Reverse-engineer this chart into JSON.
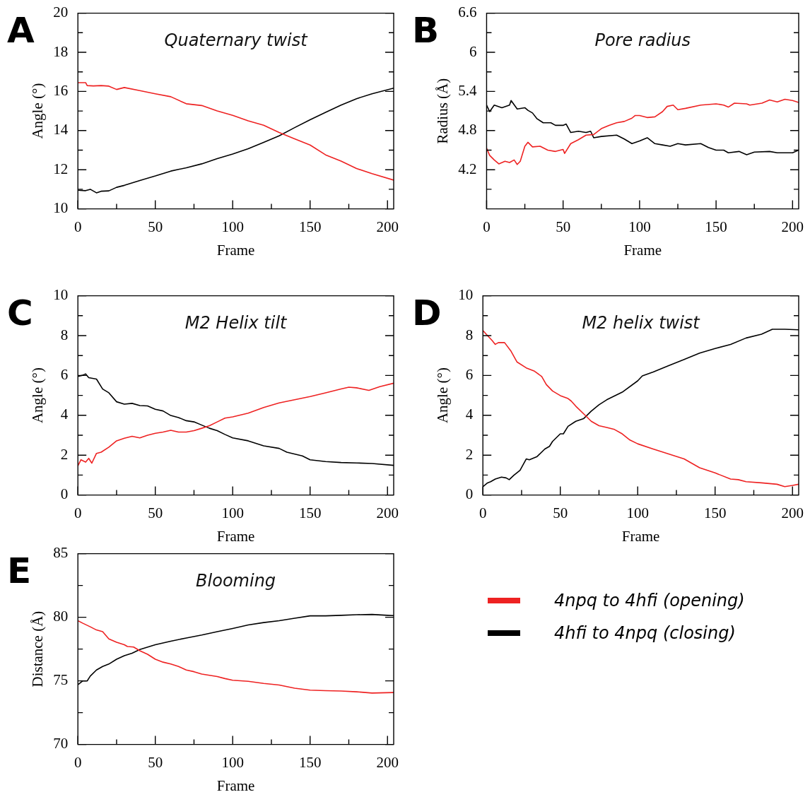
{
  "chart_data": [
    {
      "type": "line",
      "title": "Quaternary twist",
      "xlabel": "Frame",
      "ylabel": "Angle (°)",
      "annotations": [
        "A"
      ],
      "marker": "none",
      "xlim": [
        0,
        204
      ],
      "xticks": [
        0,
        {
          "value": 25,
          "label": null
        },
        50,
        {
          "value": 75,
          "label": null
        },
        100,
        {
          "value": 125,
          "label": null
        },
        150,
        {
          "value": 175,
          "label": null
        },
        200
      ],
      "ylim": [
        10,
        20
      ],
      "yticks": [
        10,
        {
          "value": 11,
          "label": null
        },
        12,
        {
          "value": 13,
          "label": null
        },
        14,
        {
          "value": 15,
          "label": null
        },
        16,
        {
          "value": 17,
          "label": null
        },
        18,
        {
          "value": 19,
          "label": null
        },
        20
      ],
      "series": [
        {
          "color": "#ee2222",
          "x": [
            0,
            5,
            6,
            10,
            15,
            20,
            25,
            30,
            40,
            50,
            60,
            70,
            80,
            90,
            100,
            110,
            120,
            130,
            140,
            150,
            160,
            170,
            180,
            190,
            204
          ],
          "values": [
            16.45,
            16.45,
            16.3,
            16.28,
            16.3,
            16.27,
            16.1,
            16.2,
            16.04,
            15.88,
            15.73,
            15.37,
            15.28,
            15.0,
            14.78,
            14.5,
            14.27,
            13.9,
            13.58,
            13.26,
            12.76,
            12.44,
            12.06,
            11.8,
            11.47
          ]
        },
        {
          "color": "#000000",
          "x": [
            0,
            5,
            8,
            12,
            15,
            20,
            25,
            30,
            40,
            50,
            60,
            70,
            80,
            90,
            100,
            110,
            120,
            130,
            140,
            150,
            160,
            170,
            180,
            190,
            204
          ],
          "values": [
            10.95,
            10.93,
            11.0,
            10.82,
            10.9,
            10.92,
            11.1,
            11.2,
            11.45,
            11.68,
            11.93,
            12.1,
            12.3,
            12.57,
            12.8,
            13.07,
            13.4,
            13.73,
            14.15,
            14.55,
            14.93,
            15.3,
            15.63,
            15.88,
            16.17
          ]
        }
      ]
    },
    {
      "type": "line",
      "title": "Pore radius",
      "xlabel": "Frame",
      "ylabel": "Radius (Å)",
      "annotations": [
        "B"
      ],
      "marker": "none",
      "xlim": [
        0,
        204
      ],
      "xticks": [
        0,
        {
          "value": 25,
          "label": null
        },
        50,
        {
          "value": 75,
          "label": null
        },
        100,
        {
          "value": 125,
          "label": null
        },
        150,
        {
          "value": 175,
          "label": null
        },
        200
      ],
      "ylim": [
        3.6,
        6.6
      ],
      "yticks": [
        {
          "value": 3.9,
          "label": null
        },
        4.2,
        {
          "value": 4.5,
          "label": null
        },
        4.8,
        {
          "value": 5.1,
          "label": null
        },
        5.4,
        {
          "value": 5.7,
          "label": null
        },
        6,
        {
          "value": 6.3,
          "label": null
        },
        6.6
      ],
      "series": [
        {
          "color": "#ee2222",
          "x": [
            0,
            2,
            5,
            8,
            12,
            15,
            18,
            20,
            22,
            25,
            27,
            30,
            35,
            40,
            45,
            50,
            51,
            55,
            60,
            65,
            70,
            75,
            80,
            85,
            90,
            95,
            97,
            100,
            105,
            110,
            115,
            118,
            122,
            125,
            130,
            140,
            150,
            155,
            158,
            162,
            170,
            172,
            180,
            185,
            190,
            195,
            200,
            204
          ],
          "values": [
            4.53,
            4.42,
            4.35,
            4.29,
            4.33,
            4.31,
            4.35,
            4.28,
            4.33,
            4.56,
            4.62,
            4.55,
            4.56,
            4.5,
            4.48,
            4.51,
            4.45,
            4.6,
            4.66,
            4.73,
            4.74,
            4.83,
            4.88,
            4.92,
            4.94,
            4.99,
            5.03,
            5.03,
            5.0,
            5.01,
            5.09,
            5.17,
            5.19,
            5.12,
            5.14,
            5.19,
            5.21,
            5.19,
            5.16,
            5.22,
            5.21,
            5.19,
            5.22,
            5.27,
            5.24,
            5.28,
            5.26,
            5.23
          ]
        },
        {
          "color": "#000000",
          "x": [
            0,
            2,
            5,
            10,
            15,
            16,
            20,
            25,
            27,
            30,
            33,
            37,
            42,
            45,
            50,
            52,
            55,
            60,
            65,
            68,
            70,
            75,
            85,
            90,
            95,
            100,
            105,
            110,
            115,
            120,
            125,
            130,
            140,
            145,
            150,
            155,
            158,
            165,
            170,
            175,
            185,
            190,
            195,
            200,
            204
          ],
          "values": [
            5.19,
            5.09,
            5.19,
            5.15,
            5.19,
            5.26,
            5.13,
            5.15,
            5.11,
            5.07,
            4.98,
            4.92,
            4.92,
            4.88,
            4.88,
            4.9,
            4.77,
            4.79,
            4.77,
            4.79,
            4.69,
            4.71,
            4.73,
            4.67,
            4.6,
            4.64,
            4.69,
            4.6,
            4.58,
            4.56,
            4.6,
            4.58,
            4.6,
            4.54,
            4.5,
            4.5,
            4.46,
            4.48,
            4.43,
            4.47,
            4.48,
            4.46,
            4.46,
            4.46,
            4.5
          ]
        }
      ]
    },
    {
      "type": "line",
      "title": "M2 Helix tilt",
      "xlabel": "Frame",
      "ylabel": "Angle (°)",
      "annotations": [
        "C"
      ],
      "marker": "none",
      "xlim": [
        0,
        204
      ],
      "xticks": [
        0,
        {
          "value": 25,
          "label": null
        },
        50,
        {
          "value": 75,
          "label": null
        },
        100,
        {
          "value": 125,
          "label": null
        },
        150,
        {
          "value": 175,
          "label": null
        },
        200
      ],
      "ylim": [
        0,
        10
      ],
      "yticks": [
        0,
        {
          "value": 1,
          "label": null
        },
        2,
        {
          "value": 3,
          "label": null
        },
        4,
        {
          "value": 5,
          "label": null
        },
        6,
        {
          "value": 7,
          "label": null
        },
        8,
        {
          "value": 9,
          "label": null
        },
        10
      ],
      "series": [
        {
          "color": "#ee2222",
          "x": [
            0,
            2,
            5,
            7,
            9,
            12,
            15,
            20,
            25,
            30,
            35,
            40,
            45,
            50,
            55,
            60,
            65,
            70,
            75,
            80,
            85,
            90,
            95,
            100,
            110,
            120,
            130,
            140,
            150,
            160,
            170,
            175,
            180,
            188,
            195,
            204
          ],
          "values": [
            1.46,
            1.77,
            1.65,
            1.84,
            1.6,
            2.09,
            2.15,
            2.4,
            2.72,
            2.85,
            2.95,
            2.87,
            3.0,
            3.1,
            3.16,
            3.25,
            3.16,
            3.16,
            3.23,
            3.35,
            3.48,
            3.67,
            3.86,
            3.92,
            4.11,
            4.39,
            4.62,
            4.78,
            4.94,
            5.13,
            5.32,
            5.41,
            5.38,
            5.25,
            5.44,
            5.61
          ]
        },
        {
          "color": "#000000",
          "x": [
            0,
            3,
            5,
            7,
            12,
            16,
            20,
            25,
            30,
            35,
            40,
            45,
            50,
            55,
            60,
            65,
            70,
            75,
            80,
            85,
            90,
            95,
            100,
            110,
            120,
            130,
            135,
            145,
            150,
            160,
            170,
            180,
            190,
            204
          ],
          "values": [
            5.95,
            6.01,
            6.08,
            5.89,
            5.82,
            5.32,
            5.13,
            4.68,
            4.56,
            4.6,
            4.49,
            4.47,
            4.3,
            4.22,
            3.99,
            3.89,
            3.73,
            3.67,
            3.51,
            3.35,
            3.23,
            3.04,
            2.87,
            2.72,
            2.47,
            2.34,
            2.15,
            1.96,
            1.77,
            1.68,
            1.63,
            1.61,
            1.58,
            1.49
          ]
        }
      ]
    },
    {
      "type": "line",
      "title": "M2 helix twist",
      "xlabel": "Frame",
      "ylabel": "Angle (°)",
      "annotations": [
        "D"
      ],
      "marker": "none",
      "xlim": [
        0,
        204
      ],
      "xticks": [
        0,
        {
          "value": 25,
          "label": null
        },
        50,
        {
          "value": 75,
          "label": null
        },
        100,
        {
          "value": 125,
          "label": null
        },
        150,
        {
          "value": 175,
          "label": null
        },
        200
      ],
      "ylim": [
        0,
        10
      ],
      "yticks": [
        0,
        {
          "value": 1,
          "label": null
        },
        2,
        {
          "value": 3,
          "label": null
        },
        4,
        {
          "value": 5,
          "label": null
        },
        6,
        {
          "value": 7,
          "label": null
        },
        8,
        {
          "value": 9,
          "label": null
        },
        10
      ],
      "series": [
        {
          "color": "#ee2222",
          "x": [
            0,
            3,
            6,
            8,
            10,
            14,
            18,
            22,
            28,
            33,
            38,
            41,
            45,
            50,
            55,
            57,
            60,
            65,
            70,
            75,
            80,
            85,
            90,
            95,
            100,
            110,
            120,
            130,
            140,
            150,
            160,
            165,
            170,
            180,
            190,
            195,
            200,
            204
          ],
          "values": [
            8.26,
            8.0,
            7.75,
            7.56,
            7.65,
            7.65,
            7.24,
            6.68,
            6.38,
            6.23,
            5.95,
            5.54,
            5.22,
            4.99,
            4.84,
            4.72,
            4.46,
            4.08,
            3.7,
            3.48,
            3.39,
            3.29,
            3.07,
            2.76,
            2.57,
            2.31,
            2.06,
            1.81,
            1.37,
            1.11,
            0.8,
            0.77,
            0.67,
            0.61,
            0.54,
            0.42,
            0.48,
            0.54
          ]
        },
        {
          "color": "#000000",
          "x": [
            0,
            3,
            5,
            8,
            12,
            15,
            17,
            20,
            24,
            28,
            30,
            35,
            40,
            43,
            45,
            50,
            52,
            55,
            60,
            65,
            70,
            75,
            80,
            90,
            100,
            103,
            110,
            120,
            130,
            140,
            150,
            160,
            170,
            180,
            187,
            195,
            204
          ],
          "values": [
            0.42,
            0.61,
            0.67,
            0.8,
            0.9,
            0.86,
            0.77,
            0.99,
            1.24,
            1.81,
            1.77,
            1.93,
            2.31,
            2.44,
            2.69,
            3.07,
            3.07,
            3.45,
            3.7,
            3.83,
            4.21,
            4.53,
            4.78,
            5.16,
            5.73,
            5.98,
            6.17,
            6.49,
            6.8,
            7.12,
            7.35,
            7.56,
            7.88,
            8.07,
            8.32,
            8.32,
            8.29
          ]
        }
      ]
    },
    {
      "type": "line",
      "title": "Blooming",
      "xlabel": "Frame",
      "ylabel": "Distance (Å)",
      "annotations": [
        "E"
      ],
      "marker": "none",
      "legend": "right",
      "xlim": [
        0,
        204
      ],
      "xticks": [
        0,
        {
          "value": 25,
          "label": null
        },
        50,
        {
          "value": 75,
          "label": null
        },
        100,
        {
          "value": 125,
          "label": null
        },
        150,
        {
          "value": 175,
          "label": null
        },
        200
      ],
      "ylim": [
        70,
        85
      ],
      "yticks": [
        70,
        {
          "value": 72.5,
          "label": null
        },
        75,
        {
          "value": 77.5,
          "label": null
        },
        80,
        {
          "value": 82.5,
          "label": null
        },
        85
      ],
      "series": [
        {
          "name": "4npq to 4hfi (opening)",
          "color": "#ee2222",
          "x": [
            0,
            3,
            8,
            12,
            16,
            20,
            25,
            30,
            32,
            36,
            40,
            45,
            50,
            55,
            60,
            65,
            70,
            75,
            80,
            90,
            95,
            100,
            110,
            120,
            130,
            140,
            150,
            160,
            170,
            180,
            190,
            204
          ],
          "values": [
            79.73,
            79.54,
            79.25,
            79.0,
            78.87,
            78.3,
            78.03,
            77.84,
            77.7,
            77.66,
            77.37,
            77.09,
            76.7,
            76.47,
            76.32,
            76.13,
            75.85,
            75.72,
            75.53,
            75.34,
            75.18,
            75.05,
            74.96,
            74.8,
            74.67,
            74.42,
            74.27,
            74.23,
            74.2,
            74.14,
            74.04,
            74.08
          ]
        },
        {
          "name": "4hfi to 4npq (closing)",
          "color": "#000000",
          "x": [
            0,
            3,
            6,
            8,
            12,
            16,
            20,
            25,
            30,
            35,
            40,
            50,
            60,
            70,
            80,
            90,
            100,
            110,
            120,
            130,
            140,
            150,
            160,
            170,
            180,
            190,
            200,
            204
          ],
          "values": [
            74.7,
            74.99,
            74.99,
            75.37,
            75.85,
            76.13,
            76.32,
            76.7,
            76.98,
            77.17,
            77.46,
            77.84,
            78.12,
            78.37,
            78.6,
            78.87,
            79.12,
            79.39,
            79.58,
            79.73,
            79.92,
            80.11,
            80.11,
            80.15,
            80.2,
            80.22,
            80.15,
            80.13
          ]
        }
      ]
    }
  ]
}
